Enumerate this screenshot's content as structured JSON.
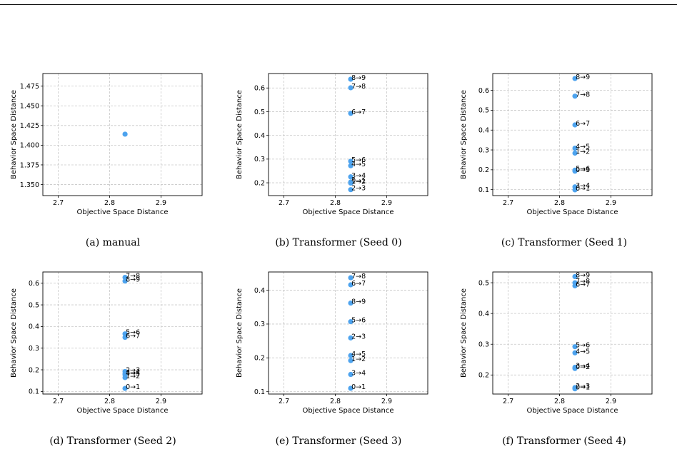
{
  "colors": {
    "point": "#4da3ee",
    "grid": "#c8c8c8",
    "axis": "#000000"
  },
  "chart_data": [
    {
      "type": "scatter",
      "caption": "(a) manual",
      "xlabel": "Objective Space Distance",
      "ylabel": "Behavior Space Distance",
      "xlim": [
        2.67,
        2.98
      ],
      "ylim": [
        1.336,
        1.491
      ],
      "xticks": [
        "2.7",
        "2.8",
        "2.9"
      ],
      "yticks": [
        "1.350",
        "1.375",
        "1.400",
        "1.425",
        "1.450",
        "1.475"
      ],
      "grid": true,
      "points": [
        {
          "x": 2.83,
          "y": 1.414,
          "label": ""
        }
      ]
    },
    {
      "type": "scatter",
      "caption": "(b) Transformer (Seed 0)",
      "xlabel": "Objective Space Distance",
      "ylabel": "Behavior Space Distance",
      "xlim": [
        2.67,
        2.98
      ],
      "ylim": [
        0.146,
        0.661
      ],
      "xticks": [
        "2.7",
        "2.8",
        "2.9"
      ],
      "yticks": [
        "0.2",
        "0.3",
        "0.4",
        "0.5",
        "0.6"
      ],
      "grid": true,
      "points": [
        {
          "x": 2.83,
          "y": 0.637,
          "label": "8→9"
        },
        {
          "x": 2.83,
          "y": 0.601,
          "label": "7→8"
        },
        {
          "x": 2.83,
          "y": 0.493,
          "label": "6→7"
        },
        {
          "x": 2.83,
          "y": 0.291,
          "label": "5→6"
        },
        {
          "x": 2.83,
          "y": 0.272,
          "label": "4→5"
        },
        {
          "x": 2.83,
          "y": 0.225,
          "label": "3→4"
        },
        {
          "x": 2.83,
          "y": 0.203,
          "label": "0→1"
        },
        {
          "x": 2.83,
          "y": 0.199,
          "label": "1→2"
        },
        {
          "x": 2.83,
          "y": 0.171,
          "label": "2→3"
        }
      ]
    },
    {
      "type": "scatter",
      "caption": "(c) Transformer (Seed 1)",
      "xlabel": "Objective Space Distance",
      "ylabel": "Behavior Space Distance",
      "xlim": [
        2.67,
        2.98
      ],
      "ylim": [
        0.07,
        0.685
      ],
      "xticks": [
        "2.7",
        "2.8",
        "2.9"
      ],
      "yticks": [
        "0.1",
        "0.2",
        "0.3",
        "0.4",
        "0.5",
        "0.6"
      ],
      "grid": true,
      "points": [
        {
          "x": 2.83,
          "y": 0.66,
          "label": "8→9"
        },
        {
          "x": 2.83,
          "y": 0.571,
          "label": "7→8"
        },
        {
          "x": 2.83,
          "y": 0.426,
          "label": "6→7"
        },
        {
          "x": 2.83,
          "y": 0.309,
          "label": "4→5"
        },
        {
          "x": 2.83,
          "y": 0.284,
          "label": "1→2"
        },
        {
          "x": 2.83,
          "y": 0.198,
          "label": "5→6"
        },
        {
          "x": 2.83,
          "y": 0.193,
          "label": "0→3"
        },
        {
          "x": 2.83,
          "y": 0.114,
          "label": "3→4"
        },
        {
          "x": 2.83,
          "y": 0.099,
          "label": "0→1"
        }
      ]
    },
    {
      "type": "scatter",
      "caption": "(d) Transformer (Seed 2)",
      "xlabel": "Objective Space Distance",
      "ylabel": "Behavior Space Distance",
      "xlim": [
        2.67,
        2.98
      ],
      "ylim": [
        0.088,
        0.652
      ],
      "xticks": [
        "2.7",
        "2.8",
        "2.9"
      ],
      "yticks": [
        "0.1",
        "0.2",
        "0.3",
        "0.4",
        "0.5",
        "0.6"
      ],
      "grid": true,
      "points": [
        {
          "x": 2.83,
          "y": 0.627,
          "label": "7→8"
        },
        {
          "x": 2.83,
          "y": 0.61,
          "label": "8→9"
        },
        {
          "x": 2.83,
          "y": 0.366,
          "label": "5→6"
        },
        {
          "x": 2.83,
          "y": 0.35,
          "label": "6→7"
        },
        {
          "x": 2.83,
          "y": 0.192,
          "label": "2→3"
        },
        {
          "x": 2.83,
          "y": 0.181,
          "label": "3→4"
        },
        {
          "x": 2.83,
          "y": 0.177,
          "label": "4→5"
        },
        {
          "x": 2.83,
          "y": 0.164,
          "label": "1→2"
        },
        {
          "x": 2.83,
          "y": 0.114,
          "label": "0→1"
        }
      ]
    },
    {
      "type": "scatter",
      "caption": "(e) Transformer (Seed 3)",
      "xlabel": "Objective Space Distance",
      "ylabel": "Behavior Space Distance",
      "xlim": [
        2.67,
        2.98
      ],
      "ylim": [
        0.093,
        0.454
      ],
      "xticks": [
        "2.7",
        "2.8",
        "2.9"
      ],
      "yticks": [
        "0.1",
        "0.2",
        "0.3",
        "0.4"
      ],
      "grid": true,
      "points": [
        {
          "x": 2.83,
          "y": 0.437,
          "label": "7→8"
        },
        {
          "x": 2.83,
          "y": 0.416,
          "label": "6→7"
        },
        {
          "x": 2.83,
          "y": 0.362,
          "label": "8→9"
        },
        {
          "x": 2.83,
          "y": 0.307,
          "label": "5→6"
        },
        {
          "x": 2.83,
          "y": 0.259,
          "label": "2→3"
        },
        {
          "x": 2.83,
          "y": 0.207,
          "label": "4→5"
        },
        {
          "x": 2.83,
          "y": 0.192,
          "label": "1→2"
        },
        {
          "x": 2.83,
          "y": 0.151,
          "label": "3→4"
        },
        {
          "x": 2.83,
          "y": 0.11,
          "label": "0→1"
        }
      ]
    },
    {
      "type": "scatter",
      "caption": "(f) Transformer (Seed 4)",
      "xlabel": "Objective Space Distance",
      "ylabel": "Behavior Space Distance",
      "xlim": [
        2.67,
        2.98
      ],
      "ylim": [
        0.138,
        0.535
      ],
      "xticks": [
        "2.7",
        "2.8",
        "2.9"
      ],
      "yticks": [
        "0.2",
        "0.3",
        "0.4",
        "0.5"
      ],
      "grid": true,
      "points": [
        {
          "x": 2.83,
          "y": 0.52,
          "label": "8→9"
        },
        {
          "x": 2.83,
          "y": 0.5,
          "label": "7→8"
        },
        {
          "x": 2.83,
          "y": 0.49,
          "label": "6→7"
        },
        {
          "x": 2.83,
          "y": 0.292,
          "label": "5→6"
        },
        {
          "x": 2.83,
          "y": 0.272,
          "label": "4→5"
        },
        {
          "x": 2.83,
          "y": 0.225,
          "label": "3→4"
        },
        {
          "x": 2.83,
          "y": 0.221,
          "label": "0→2"
        },
        {
          "x": 2.83,
          "y": 0.159,
          "label": "2→3"
        },
        {
          "x": 2.83,
          "y": 0.155,
          "label": "0→1"
        }
      ]
    }
  ]
}
